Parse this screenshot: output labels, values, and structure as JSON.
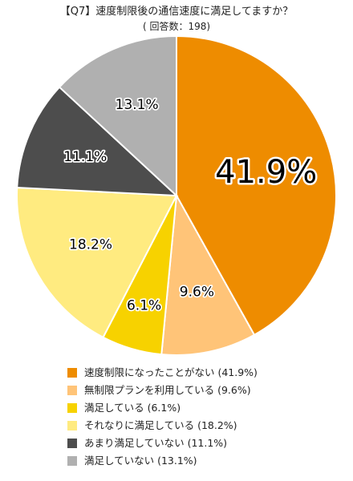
{
  "title": "【Q7】速度制限後の通信速度に満足してますか？",
  "subtitle": "( 回答数：198)",
  "chart_data": {
    "type": "pie",
    "title": "【Q7】速度制限後の通信速度に満足してますか？",
    "subtitle": "( 回答数：198)",
    "start_angle_deg": 0,
    "direction": "clockwise",
    "legend_position": "bottom",
    "slices": [
      {
        "label": "速度制限になったことがない",
        "value": 41.9,
        "display": "41.9%",
        "legend": "速度制限になったことがない (41.9%)",
        "color": "#EE8C00"
      },
      {
        "label": "無制限プランを利用している",
        "value": 9.6,
        "display": "9.6%",
        "legend": "無制限プランを利用している (9.6%)",
        "color": "#FFC478"
      },
      {
        "label": "満足している",
        "value": 6.1,
        "display": "6.1%",
        "legend": "満足している (6.1%)",
        "color": "#F7D200"
      },
      {
        "label": "それなりに満足している",
        "value": 18.2,
        "display": "18.2%",
        "legend": "それなりに満足している (18.2%)",
        "color": "#FFEB80"
      },
      {
        "label": "あまり満足していない",
        "value": 11.1,
        "display": "11.1%",
        "legend": "あまり満足していない (11.1%)",
        "color": "#4D4D4D"
      },
      {
        "label": "満足していない",
        "value": 13.1,
        "display": "13.1%",
        "legend": "満足していない (13.1%)",
        "color": "#B0B0B0"
      }
    ]
  }
}
